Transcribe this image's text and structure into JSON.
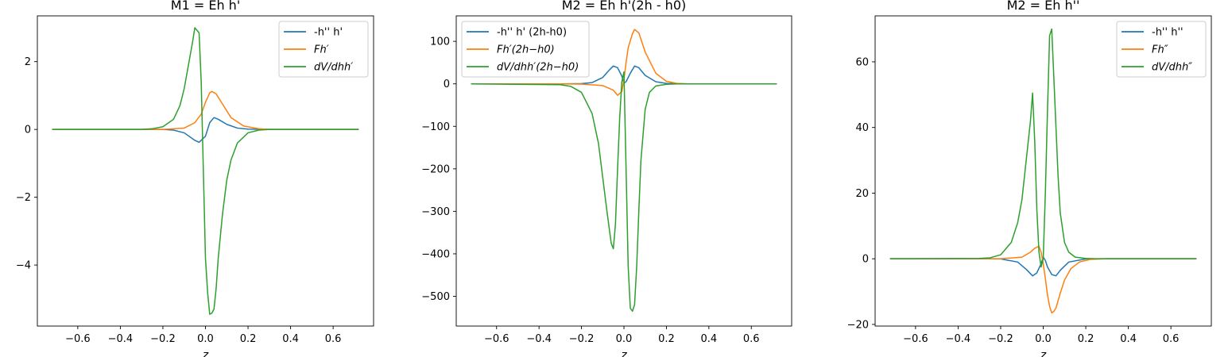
{
  "figure": {
    "background": "#ffffff",
    "colors": {
      "blue": "#1f77b4",
      "orange": "#ff7f0e",
      "green": "#2ca02c"
    }
  },
  "chart_data": [
    {
      "type": "line",
      "title": "M1 = Eh h'",
      "xlabel": "z",
      "ylabel": "",
      "xlim": [
        -0.79,
        0.79
      ],
      "ylim": [
        -5.8,
        3.35
      ],
      "xticks": [
        -0.6,
        -0.4,
        -0.2,
        0.0,
        0.2,
        0.4,
        0.6
      ],
      "xtick_labels": [
        "−0.6",
        "−0.4",
        "−0.2",
        "0.0",
        "0.2",
        "0.4",
        "0.6"
      ],
      "yticks": [
        -4,
        -2,
        0,
        2
      ],
      "ytick_labels": [
        "−4",
        "−2",
        "0",
        "2"
      ],
      "legend_position": "top-right",
      "grid": false,
      "series": [
        {
          "name": "-h'' h'",
          "math": false,
          "color": "#1f77b4",
          "x": [
            -0.72,
            -0.3,
            -0.2,
            -0.15,
            -0.1,
            -0.05,
            -0.03,
            0.0,
            0.02,
            0.04,
            0.06,
            0.1,
            0.15,
            0.2,
            0.3,
            0.72
          ],
          "y": [
            0,
            0,
            0,
            -0.02,
            -0.1,
            -0.32,
            -0.38,
            -0.2,
            0.2,
            0.35,
            0.3,
            0.15,
            0.04,
            0.01,
            0,
            0
          ]
        },
        {
          "name": "Fh′",
          "math": true,
          "color": "#ff7f0e",
          "x": [
            -0.72,
            -0.3,
            -0.2,
            -0.1,
            -0.05,
            -0.02,
            0.0,
            0.02,
            0.03,
            0.05,
            0.08,
            0.12,
            0.18,
            0.25,
            0.3,
            0.72
          ],
          "y": [
            0,
            0,
            0,
            0.04,
            0.2,
            0.45,
            0.8,
            1.08,
            1.12,
            1.05,
            0.75,
            0.35,
            0.1,
            0.02,
            0,
            0
          ]
        },
        {
          "name": "dV/dhh′",
          "math": true,
          "color": "#2ca02c",
          "x": [
            -0.72,
            -0.3,
            -0.25,
            -0.2,
            -0.15,
            -0.12,
            -0.1,
            -0.08,
            -0.06,
            -0.05,
            -0.03,
            -0.02,
            -0.01,
            0.0,
            0.01,
            0.02,
            0.03,
            0.04,
            0.05,
            0.06,
            0.08,
            0.1,
            0.12,
            0.15,
            0.2,
            0.25,
            0.3,
            0.72
          ],
          "y": [
            0,
            0,
            0.02,
            0.08,
            0.3,
            0.7,
            1.2,
            1.9,
            2.6,
            3.0,
            2.85,
            1.4,
            -1.2,
            -3.8,
            -4.8,
            -5.45,
            -5.42,
            -5.3,
            -4.7,
            -3.8,
            -2.5,
            -1.5,
            -0.9,
            -0.4,
            -0.1,
            -0.02,
            0,
            0
          ]
        }
      ]
    },
    {
      "type": "line",
      "title": "M2 = Eh h'(2h - h0)",
      "xlabel": "z",
      "ylabel": "",
      "xlim": [
        -0.79,
        0.79
      ],
      "ylim": [
        -570,
        160
      ],
      "xticks": [
        -0.6,
        -0.4,
        -0.2,
        0.0,
        0.2,
        0.4,
        0.6
      ],
      "xtick_labels": [
        "−0.6",
        "−0.4",
        "−0.2",
        "0.0",
        "0.2",
        "0.4",
        "0.6"
      ],
      "yticks": [
        -500,
        -400,
        -300,
        -200,
        -100,
        0,
        100
      ],
      "ytick_labels": [
        "−500",
        "−400",
        "−300",
        "−200",
        "−100",
        "0",
        "100"
      ],
      "legend_position": "top-left",
      "grid": false,
      "series": [
        {
          "name": "-h'' h' (2h-h0)",
          "math": false,
          "color": "#1f77b4",
          "x": [
            -0.72,
            -0.3,
            -0.2,
            -0.15,
            -0.1,
            -0.07,
            -0.05,
            -0.03,
            -0.01,
            0.0,
            0.01,
            0.03,
            0.05,
            0.07,
            0.1,
            0.15,
            0.2,
            0.3,
            0.72
          ],
          "y": [
            0,
            0,
            0.5,
            3,
            15,
            32,
            42,
            38,
            18,
            2,
            5,
            25,
            42,
            38,
            20,
            5,
            1,
            0,
            0
          ]
        },
        {
          "name": "Fh′(2h−h0)",
          "math": true,
          "color": "#ff7f0e",
          "x": [
            -0.72,
            -0.3,
            -0.2,
            -0.1,
            -0.05,
            -0.03,
            -0.01,
            0.0,
            0.01,
            0.02,
            0.04,
            0.05,
            0.07,
            0.1,
            0.15,
            0.2,
            0.25,
            0.3,
            0.72
          ],
          "y": [
            0,
            0,
            -0.5,
            -4,
            -15,
            -27,
            -18,
            10,
            50,
            85,
            118,
            128,
            120,
            75,
            25,
            6,
            1,
            0,
            0
          ]
        },
        {
          "name": "dV/dhh′(2h−h0)",
          "math": true,
          "color": "#2ca02c",
          "x": [
            -0.72,
            -0.3,
            -0.25,
            -0.2,
            -0.15,
            -0.12,
            -0.1,
            -0.08,
            -0.06,
            -0.05,
            -0.04,
            -0.03,
            -0.02,
            -0.01,
            0.0,
            0.01,
            0.02,
            0.03,
            0.04,
            0.05,
            0.06,
            0.07,
            0.08,
            0.1,
            0.12,
            0.15,
            0.2,
            0.25,
            0.3,
            0.72
          ],
          "y": [
            0,
            -2,
            -6,
            -20,
            -70,
            -140,
            -220,
            -300,
            -375,
            -388,
            -330,
            -200,
            -80,
            5,
            28,
            -200,
            -430,
            -528,
            -535,
            -520,
            -430,
            -300,
            -180,
            -60,
            -20,
            -5,
            -1,
            0,
            0,
            0
          ]
        }
      ]
    },
    {
      "type": "line",
      "title": "M2 = Eh h''",
      "xlabel": "z",
      "ylabel": "",
      "xlim": [
        -0.79,
        0.79
      ],
      "ylim": [
        -20.5,
        74
      ],
      "xticks": [
        -0.6,
        -0.4,
        -0.2,
        0.0,
        0.2,
        0.4,
        0.6
      ],
      "xtick_labels": [
        "−0.6",
        "−0.4",
        "−0.2",
        "0.0",
        "0.2",
        "0.4",
        "0.6"
      ],
      "yticks": [
        -20,
        0,
        20,
        40,
        60
      ],
      "ytick_labels": [
        "−20",
        "0",
        "20",
        "40",
        "60"
      ],
      "legend_position": "top-right",
      "grid": false,
      "series": [
        {
          "name": "-h'' h''",
          "math": false,
          "color": "#1f77b4",
          "x": [
            -0.72,
            -0.3,
            -0.2,
            -0.12,
            -0.08,
            -0.05,
            -0.03,
            -0.01,
            0.0,
            0.01,
            0.02,
            0.04,
            0.06,
            0.08,
            0.12,
            0.2,
            0.3,
            0.72
          ],
          "y": [
            0,
            0,
            -0.05,
            -1,
            -3.2,
            -5.2,
            -4.3,
            -1.5,
            0.5,
            -0.5,
            -2.5,
            -4.8,
            -5.2,
            -3.5,
            -1,
            -0.05,
            0,
            0
          ]
        },
        {
          "name": "Fh″",
          "math": true,
          "color": "#ff7f0e",
          "x": [
            -0.72,
            -0.3,
            -0.2,
            -0.1,
            -0.06,
            -0.04,
            -0.02,
            -0.01,
            0.0,
            0.01,
            0.02,
            0.03,
            0.04,
            0.05,
            0.06,
            0.08,
            0.1,
            0.13,
            0.17,
            0.22,
            0.3,
            0.72
          ],
          "y": [
            0,
            0,
            0,
            0.5,
            2,
            3.2,
            3.8,
            2,
            -1.5,
            -6,
            -11,
            -14.5,
            -16.5,
            -16,
            -15,
            -10.5,
            -6.5,
            -3,
            -1,
            -0.2,
            0,
            0
          ]
        },
        {
          "name": "dV/dhh″",
          "math": true,
          "color": "#2ca02c",
          "x": [
            -0.72,
            -0.3,
            -0.25,
            -0.2,
            -0.15,
            -0.12,
            -0.1,
            -0.08,
            -0.06,
            -0.05,
            -0.04,
            -0.03,
            -0.02,
            -0.01,
            0.0,
            0.01,
            0.02,
            0.03,
            0.04,
            0.05,
            0.06,
            0.07,
            0.08,
            0.1,
            0.12,
            0.15,
            0.2,
            0.25,
            0.3,
            0.72
          ],
          "y": [
            0,
            0.1,
            0.3,
            1.2,
            5,
            11,
            18,
            30,
            42,
            50.5,
            36,
            15,
            2,
            -2.5,
            0,
            20,
            45,
            68,
            70,
            55,
            40,
            25,
            14,
            5,
            2,
            0.5,
            0.1,
            0,
            0,
            0
          ]
        }
      ]
    }
  ]
}
